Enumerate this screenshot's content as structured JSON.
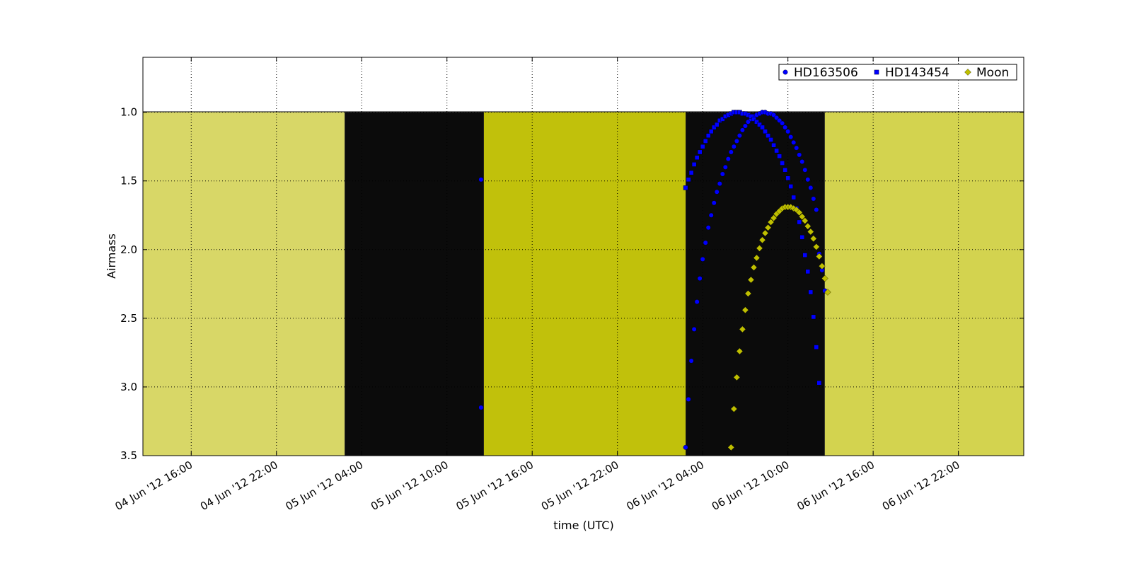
{
  "chart_data": {
    "type": "scatter",
    "title": "",
    "xlabel": "time (UTC)",
    "ylabel": "Airmass",
    "x_range": [
      "2012-06-04T12:36",
      "2012-06-07T02:36"
    ],
    "ylim": [
      3.5,
      0.6
    ],
    "y_inverted": true,
    "grid": true,
    "legend_position": "top-right",
    "x_ticks": [
      "04 Jun '12 16:00",
      "04 Jun '12 22:00",
      "05 Jun '12 04:00",
      "05 Jun '12 10:00",
      "05 Jun '12 16:00",
      "05 Jun '12 22:00",
      "06 Jun '12 04:00",
      "06 Jun '12 10:00",
      "06 Jun '12 16:00",
      "06 Jun '12 22:00"
    ],
    "x_tick_times": [
      "2012-06-04T16:00",
      "2012-06-04T22:00",
      "2012-06-05T04:00",
      "2012-06-05T10:00",
      "2012-06-05T16:00",
      "2012-06-05T22:00",
      "2012-06-06T04:00",
      "2012-06-06T10:00",
      "2012-06-06T16:00",
      "2012-06-06T22:00"
    ],
    "y_ticks": [
      "1.0",
      "1.5",
      "2.0",
      "2.5",
      "3.0",
      "3.5"
    ],
    "y_tick_values": [
      1.0,
      1.5,
      2.0,
      2.5,
      3.0,
      3.5
    ],
    "background_bands": [
      {
        "start": "2012-06-04T12:36",
        "end": "2012-06-05T02:48",
        "color": "#d8d767"
      },
      {
        "start": "2012-06-05T02:48",
        "end": "2012-06-05T12:36",
        "color": "#0b0b0b"
      },
      {
        "start": "2012-06-05T12:36",
        "end": "2012-06-06T02:48",
        "color": "#c1c10b"
      },
      {
        "start": "2012-06-06T02:48",
        "end": "2012-06-06T12:36",
        "color": "#0b0b0b"
      },
      {
        "start": "2012-06-06T12:36",
        "end": "2012-06-07T02:36",
        "color": "#d3d34f"
      }
    ],
    "series": [
      {
        "name": "HD163506",
        "marker": "circle",
        "color": "#0000ff",
        "points": [
          [
            "2012-06-05T12:24",
            1.49
          ],
          [
            "2012-06-05T12:24",
            3.15
          ],
          [
            "2012-06-06T02:48",
            3.44
          ],
          [
            "2012-06-06T03:00",
            3.09
          ],
          [
            "2012-06-06T03:12",
            2.81
          ],
          [
            "2012-06-06T03:24",
            2.58
          ],
          [
            "2012-06-06T03:36",
            2.38
          ],
          [
            "2012-06-06T03:48",
            2.21
          ],
          [
            "2012-06-06T04:00",
            2.07
          ],
          [
            "2012-06-06T04:12",
            1.95
          ],
          [
            "2012-06-06T04:24",
            1.84
          ],
          [
            "2012-06-06T04:36",
            1.75
          ],
          [
            "2012-06-06T04:48",
            1.66
          ],
          [
            "2012-06-06T05:00",
            1.58
          ],
          [
            "2012-06-06T05:12",
            1.52
          ],
          [
            "2012-06-06T05:24",
            1.45
          ],
          [
            "2012-06-06T05:36",
            1.4
          ],
          [
            "2012-06-06T05:48",
            1.34
          ],
          [
            "2012-06-06T06:00",
            1.29
          ],
          [
            "2012-06-06T06:12",
            1.25
          ],
          [
            "2012-06-06T06:24",
            1.21
          ],
          [
            "2012-06-06T06:36",
            1.17
          ],
          [
            "2012-06-06T06:48",
            1.13
          ],
          [
            "2012-06-06T07:00",
            1.1
          ],
          [
            "2012-06-06T07:12",
            1.07
          ],
          [
            "2012-06-06T07:24",
            1.05
          ],
          [
            "2012-06-06T07:36",
            1.03
          ],
          [
            "2012-06-06T07:48",
            1.02
          ],
          [
            "2012-06-06T08:00",
            1.01
          ],
          [
            "2012-06-06T08:12",
            1.0
          ],
          [
            "2012-06-06T08:24",
            1.0
          ],
          [
            "2012-06-06T08:36",
            1.01
          ],
          [
            "2012-06-06T08:48",
            1.01
          ],
          [
            "2012-06-06T09:00",
            1.02
          ],
          [
            "2012-06-06T09:12",
            1.04
          ],
          [
            "2012-06-06T09:24",
            1.06
          ],
          [
            "2012-06-06T09:36",
            1.08
          ],
          [
            "2012-06-06T09:48",
            1.11
          ],
          [
            "2012-06-06T10:00",
            1.14
          ],
          [
            "2012-06-06T10:12",
            1.18
          ],
          [
            "2012-06-06T10:24",
            1.22
          ],
          [
            "2012-06-06T10:36",
            1.26
          ],
          [
            "2012-06-06T10:48",
            1.31
          ],
          [
            "2012-06-06T11:00",
            1.36
          ],
          [
            "2012-06-06T11:12",
            1.42
          ],
          [
            "2012-06-06T11:24",
            1.49
          ],
          [
            "2012-06-06T11:36",
            1.55
          ],
          [
            "2012-06-06T11:48",
            1.63
          ],
          [
            "2012-06-06T12:00",
            1.71
          ],
          [
            "2012-06-06T12:12",
            2.03
          ],
          [
            "2012-06-06T12:24",
            2.15
          ],
          [
            "2012-06-06T12:36",
            2.3
          ]
        ]
      },
      {
        "name": "HD143454",
        "marker": "square",
        "color": "#0000ff",
        "points": [
          [
            "2012-06-06T02:48",
            1.55
          ],
          [
            "2012-06-06T03:00",
            1.49
          ],
          [
            "2012-06-06T03:12",
            1.44
          ],
          [
            "2012-06-06T03:24",
            1.38
          ],
          [
            "2012-06-06T03:36",
            1.33
          ],
          [
            "2012-06-06T03:48",
            1.29
          ],
          [
            "2012-06-06T04:00",
            1.25
          ],
          [
            "2012-06-06T04:12",
            1.21
          ],
          [
            "2012-06-06T04:24",
            1.17
          ],
          [
            "2012-06-06T04:36",
            1.14
          ],
          [
            "2012-06-06T04:48",
            1.11
          ],
          [
            "2012-06-06T05:00",
            1.09
          ],
          [
            "2012-06-06T05:12",
            1.06
          ],
          [
            "2012-06-06T05:24",
            1.05
          ],
          [
            "2012-06-06T05:36",
            1.03
          ],
          [
            "2012-06-06T05:48",
            1.02
          ],
          [
            "2012-06-06T06:00",
            1.01
          ],
          [
            "2012-06-06T06:12",
            1.0
          ],
          [
            "2012-06-06T06:24",
            1.0
          ],
          [
            "2012-06-06T06:36",
            1.0
          ],
          [
            "2012-06-06T06:48",
            1.01
          ],
          [
            "2012-06-06T07:00",
            1.01
          ],
          [
            "2012-06-06T07:12",
            1.02
          ],
          [
            "2012-06-06T07:24",
            1.03
          ],
          [
            "2012-06-06T07:36",
            1.05
          ],
          [
            "2012-06-06T07:48",
            1.07
          ],
          [
            "2012-06-06T08:00",
            1.09
          ],
          [
            "2012-06-06T08:12",
            1.11
          ],
          [
            "2012-06-06T08:24",
            1.14
          ],
          [
            "2012-06-06T08:36",
            1.17
          ],
          [
            "2012-06-06T08:48",
            1.2
          ],
          [
            "2012-06-06T09:00",
            1.24
          ],
          [
            "2012-06-06T09:12",
            1.28
          ],
          [
            "2012-06-06T09:24",
            1.32
          ],
          [
            "2012-06-06T09:36",
            1.37
          ],
          [
            "2012-06-06T09:48",
            1.42
          ],
          [
            "2012-06-06T10:00",
            1.48
          ],
          [
            "2012-06-06T10:12",
            1.54
          ],
          [
            "2012-06-06T10:24",
            1.62
          ],
          [
            "2012-06-06T10:36",
            1.7
          ],
          [
            "2012-06-06T10:48",
            1.8
          ],
          [
            "2012-06-06T11:00",
            1.91
          ],
          [
            "2012-06-06T11:12",
            2.04
          ],
          [
            "2012-06-06T11:24",
            2.16
          ],
          [
            "2012-06-06T11:36",
            2.31
          ],
          [
            "2012-06-06T11:48",
            2.49
          ],
          [
            "2012-06-06T12:00",
            2.71
          ],
          [
            "2012-06-06T12:12",
            2.97
          ]
        ]
      },
      {
        "name": "Moon",
        "marker": "diamond",
        "color": "#bfbf00",
        "points": [
          [
            "2012-06-06T06:00",
            3.44
          ],
          [
            "2012-06-06T06:12",
            3.16
          ],
          [
            "2012-06-06T06:24",
            2.93
          ],
          [
            "2012-06-06T06:36",
            2.74
          ],
          [
            "2012-06-06T06:48",
            2.58
          ],
          [
            "2012-06-06T07:00",
            2.44
          ],
          [
            "2012-06-06T07:12",
            2.32
          ],
          [
            "2012-06-06T07:24",
            2.22
          ],
          [
            "2012-06-06T07:36",
            2.13
          ],
          [
            "2012-06-06T07:48",
            2.06
          ],
          [
            "2012-06-06T08:00",
            1.99
          ],
          [
            "2012-06-06T08:12",
            1.93
          ],
          [
            "2012-06-06T08:24",
            1.88
          ],
          [
            "2012-06-06T08:36",
            1.84
          ],
          [
            "2012-06-06T08:48",
            1.8
          ],
          [
            "2012-06-06T09:00",
            1.77
          ],
          [
            "2012-06-06T09:12",
            1.74
          ],
          [
            "2012-06-06T09:24",
            1.72
          ],
          [
            "2012-06-06T09:36",
            1.7
          ],
          [
            "2012-06-06T09:48",
            1.69
          ],
          [
            "2012-06-06T10:00",
            1.69
          ],
          [
            "2012-06-06T10:12",
            1.69
          ],
          [
            "2012-06-06T10:24",
            1.7
          ],
          [
            "2012-06-06T10:36",
            1.71
          ],
          [
            "2012-06-06T10:48",
            1.73
          ],
          [
            "2012-06-06T11:00",
            1.76
          ],
          [
            "2012-06-06T11:12",
            1.79
          ],
          [
            "2012-06-06T11:24",
            1.83
          ],
          [
            "2012-06-06T11:36",
            1.87
          ],
          [
            "2012-06-06T11:48",
            1.92
          ],
          [
            "2012-06-06T12:00",
            1.98
          ],
          [
            "2012-06-06T12:12",
            2.05
          ],
          [
            "2012-06-06T12:24",
            2.12
          ],
          [
            "2012-06-06T12:36",
            2.21
          ],
          [
            "2012-06-06T12:48",
            2.31
          ]
        ]
      }
    ]
  }
}
